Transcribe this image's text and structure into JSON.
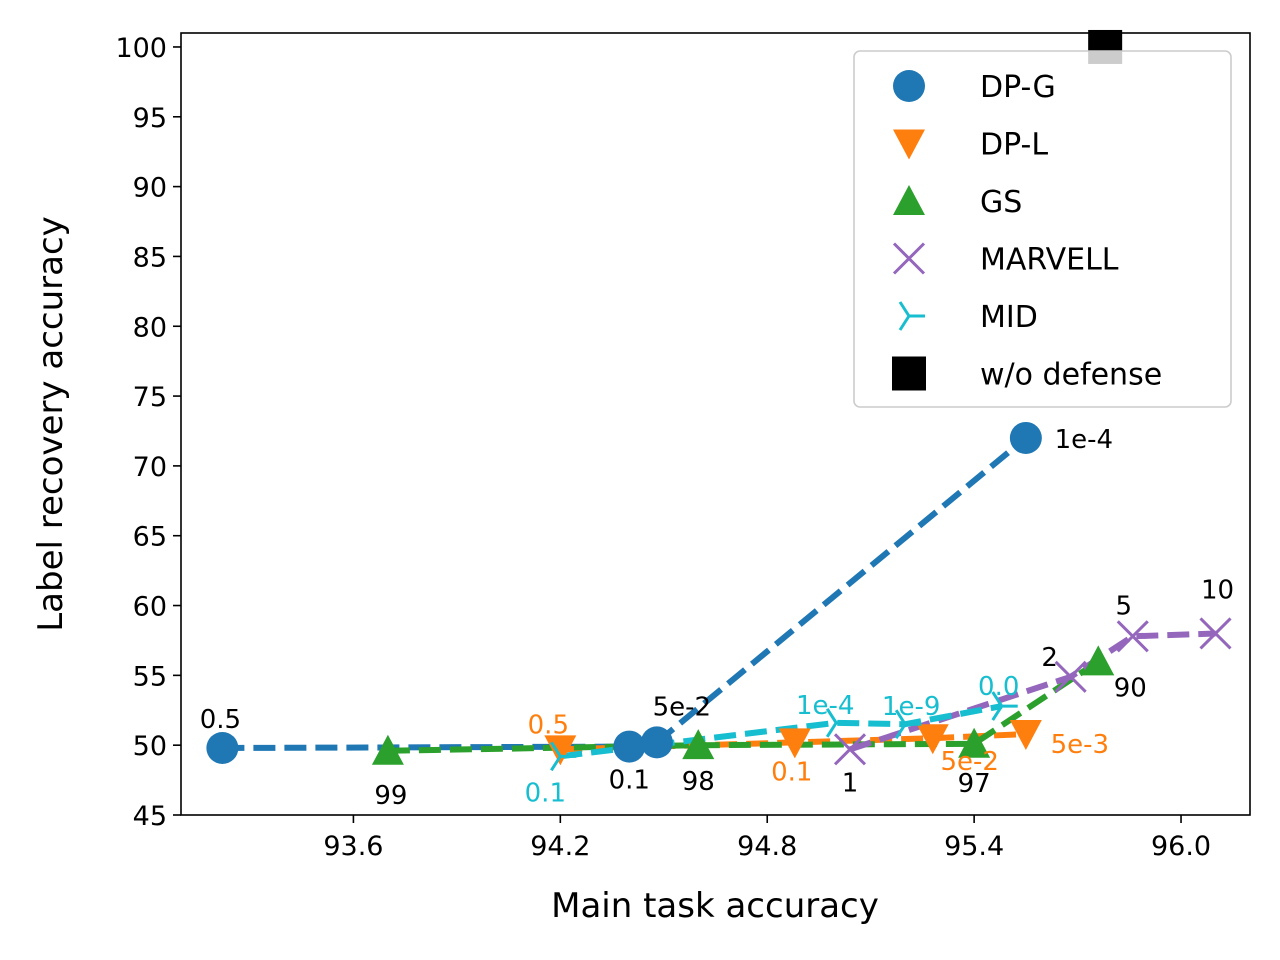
{
  "chart_data": {
    "type": "line",
    "title": "",
    "xlabel": "Main task accuracy",
    "ylabel": "Label recovery accuracy",
    "xlim": [
      93.1,
      96.2
    ],
    "ylim": [
      45,
      101
    ],
    "xticks": [
      93.6,
      94.2,
      94.8,
      95.4,
      96.0
    ],
    "xtick_labels": [
      "93.6",
      "94.2",
      "94.8",
      "95.4",
      "96.0"
    ],
    "yticks": [
      45,
      50,
      55,
      60,
      65,
      70,
      75,
      80,
      85,
      90,
      95,
      100
    ],
    "ytick_labels": [
      "45",
      "50",
      "55",
      "60",
      "65",
      "70",
      "75",
      "80",
      "85",
      "90",
      "95",
      "100"
    ],
    "legend_position": "top-right",
    "grid": false,
    "series": [
      {
        "name": "DP-G",
        "color": "#1f77b4",
        "marker": "circle",
        "linestyle": "dashed",
        "x": [
          93.22,
          94.4,
          94.48,
          95.55
        ],
        "y": [
          49.8,
          49.9,
          50.2,
          72.0
        ],
        "labels": [
          "0.5",
          "0.1",
          "5e-2",
          "1e-4"
        ],
        "label_color": "#000000"
      },
      {
        "name": "DP-L",
        "color": "#ff7f0e",
        "marker": "triangle-down",
        "linestyle": "dashed",
        "x": [
          94.2,
          94.88,
          95.28,
          95.55
        ],
        "y": [
          49.7,
          50.2,
          50.5,
          50.8
        ],
        "labels": [
          "0.5",
          "0.1",
          "5e-2",
          "5e-3"
        ],
        "label_color": "#ff7f0e"
      },
      {
        "name": "GS",
        "color": "#2ca02c",
        "marker": "triangle-up",
        "linestyle": "dashed",
        "x": [
          93.7,
          94.6,
          95.4,
          95.76
        ],
        "y": [
          49.6,
          50.0,
          50.1,
          56.0
        ],
        "labels": [
          "99",
          "98",
          "97",
          "90"
        ],
        "label_color": "#000000"
      },
      {
        "name": "MARVELL",
        "color": "#9467bd",
        "marker": "x",
        "linestyle": "dashed",
        "x": [
          95.04,
          95.68,
          95.86,
          96.1
        ],
        "y": [
          49.7,
          54.9,
          57.8,
          58.0
        ],
        "labels": [
          "1",
          "2",
          "5",
          "10"
        ],
        "label_color": "#000000"
      },
      {
        "name": "MID",
        "color": "#17becf",
        "marker": "tri-right",
        "linestyle": "dashed",
        "x": [
          94.2,
          95.0,
          95.2,
          95.48
        ],
        "y": [
          49.2,
          51.6,
          51.5,
          52.8
        ],
        "labels": [
          "0.1",
          "1e-4",
          "1e-9",
          "0.0"
        ],
        "label_color": "#17becf"
      },
      {
        "name": "w/o defense",
        "color": "#000000",
        "marker": "square",
        "linestyle": "none",
        "x": [
          95.78
        ],
        "y": [
          100.0
        ],
        "labels": [
          ""
        ],
        "label_color": "#000000"
      }
    ]
  }
}
